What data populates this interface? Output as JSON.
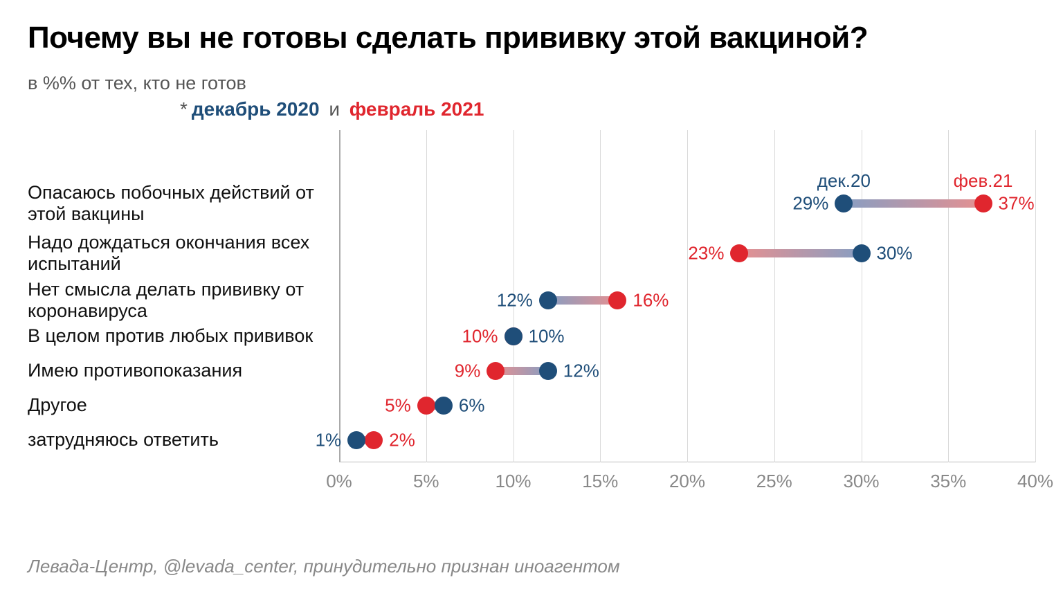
{
  "title": "Почему вы не готовы сделать прививку этой вакциной?",
  "subtitle": "в %% от тех, кто не готов",
  "legend": {
    "prefix": "*",
    "series1": "декабрь 2020",
    "sep": "и",
    "series2": "февраль 2021"
  },
  "series_headers": {
    "s1": "дек.20",
    "s2": "фев.21"
  },
  "colors": {
    "s1": "#1f4e79",
    "s2": "#e0262e",
    "grid": "#d9d9d9",
    "axis_text": "#888888",
    "label_text": "#111111",
    "bg": "#ffffff",
    "connector_s1": "#889ec2",
    "connector_s2": "#e59091"
  },
  "chart": {
    "type": "dumbbell",
    "x_min": 0,
    "x_max": 40,
    "x_step": 5,
    "tick_suffix": "%",
    "value_suffix": "%",
    "dot_radius": 13,
    "connector_height": 12,
    "label_fontsize": 27,
    "value_fontsize": 26,
    "tick_fontsize": 26,
    "rows": [
      {
        "label": "Опасаюсь побочных действий от этой вакцины",
        "v1": 29,
        "v2": 37
      },
      {
        "label": "Надо дождаться окончания всех испытаний",
        "v1": 30,
        "v2": 23
      },
      {
        "label": "Нет смысла делать прививку от коронавируса",
        "v1": 12,
        "v2": 16
      },
      {
        "label": "В целом против любых прививок",
        "v1": 10,
        "v2": 10
      },
      {
        "label": "Имею противопоказания",
        "v1": 12,
        "v2": 9
      },
      {
        "label": "Другое",
        "v1": 6,
        "v2": 5
      },
      {
        "label": "затрудняюсь ответить",
        "v1": 1,
        "v2": 2
      }
    ]
  },
  "footer": "Левада-Центр, @levada_center, принудительно признан иноагентом"
}
